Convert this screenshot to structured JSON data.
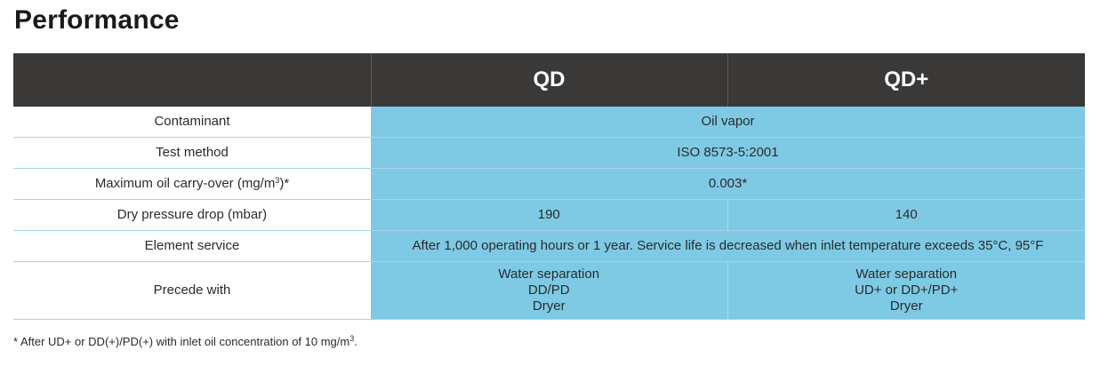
{
  "title": "Performance",
  "header": {
    "col1": "QD",
    "col2": "QD+"
  },
  "rows": {
    "contaminant": {
      "label": "Contaminant",
      "value": "Oil vapor"
    },
    "test_method": {
      "label": "Test method",
      "value": "ISO 8573-5:2001"
    },
    "max_oil": {
      "label_pre": "Maximum oil carry-over (mg/m",
      "label_sup": "3",
      "label_post": ")*",
      "value": "0.003*"
    },
    "pressure_drop": {
      "label": "Dry pressure drop (mbar)",
      "qd": "190",
      "qdplus": "140"
    },
    "element_service": {
      "label": "Element service",
      "value": "After 1,000 operating hours or 1 year. Service life is decreased when inlet temperature exceeds 35°C, 95°F"
    },
    "precede": {
      "label": "Precede with",
      "qd": [
        "Water separation",
        "DD/PD",
        "Dryer"
      ],
      "qdplus": [
        "Water separation",
        "UD+ or DD+/PD+",
        "Dryer"
      ]
    }
  },
  "footnote": {
    "pre": "* After UD+ or DD(+)/PD(+) with inlet oil concentration of 10 mg/m",
    "sup": "3",
    "post": "."
  },
  "colors": {
    "header_bg": "#3a3937",
    "cell_bg": "#7ecae4"
  }
}
